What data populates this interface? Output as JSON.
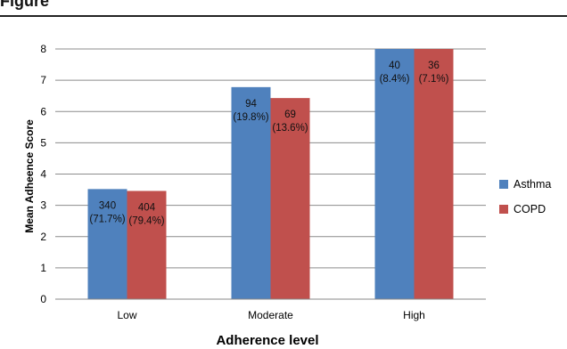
{
  "figure_label": "Figure",
  "chart_data": {
    "type": "bar",
    "categories": [
      "Low",
      "Moderate",
      "High"
    ],
    "series": [
      {
        "name": "Asthma",
        "color": "#4f81bd",
        "values": [
          3.52,
          6.78,
          8.0
        ],
        "labels": [
          [
            "340",
            "(71.7%)"
          ],
          [
            "94",
            "(19.8%)"
          ],
          [
            "40",
            "(8.4%)"
          ]
        ]
      },
      {
        "name": "COPD",
        "color": "#c0504d",
        "values": [
          3.46,
          6.43,
          8.0
        ],
        "labels": [
          [
            "404",
            "(79.4%)"
          ],
          [
            "69",
            "(13.6%)"
          ],
          [
            "36",
            "(7.1%)"
          ]
        ]
      }
    ],
    "title": "",
    "xlabel": "Adherence level",
    "ylabel": "Mean Adheence Score",
    "ylim": [
      0,
      8
    ],
    "yticks": [
      "0",
      "1",
      "2",
      "3",
      "4",
      "5",
      "6",
      "7",
      "8"
    ],
    "grid": true,
    "legend": "right"
  }
}
